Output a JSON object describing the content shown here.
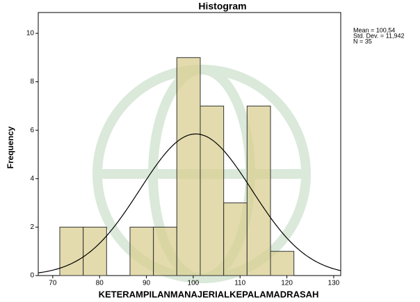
{
  "chart_data": {
    "type": "histogram",
    "title": "Histogram",
    "x_label": "KETERAMPILANMANAJERIALKEPALAMADRASAH",
    "y_label": "Frequency",
    "bins": [
      71.5,
      76.5,
      81.5,
      86.5,
      91.5,
      96.5,
      101.5,
      106.5,
      111.5,
      116.5,
      121.5
    ],
    "counts": [
      2,
      2,
      0,
      2,
      2,
      9,
      7,
      3,
      7,
      1
    ],
    "color": "#d9cf92",
    "edge_color": "#333333",
    "curve_color": "#000000",
    "xlim": [
      66.9,
      131.5
    ],
    "xticks": [
      70,
      80,
      90,
      100,
      110,
      120,
      130
    ],
    "ylim": [
      0,
      10.86
    ],
    "yticks": [
      0,
      2,
      4,
      6,
      8,
      10
    ],
    "stats": {
      "mean": {
        "value": 100.54,
        "label": "Mean = 100,54"
      },
      "sd": {
        "value": 11.942,
        "label": "Std. Dev. = 11,942"
      },
      "n": {
        "value": 35,
        "label": "N = 35"
      }
    }
  }
}
